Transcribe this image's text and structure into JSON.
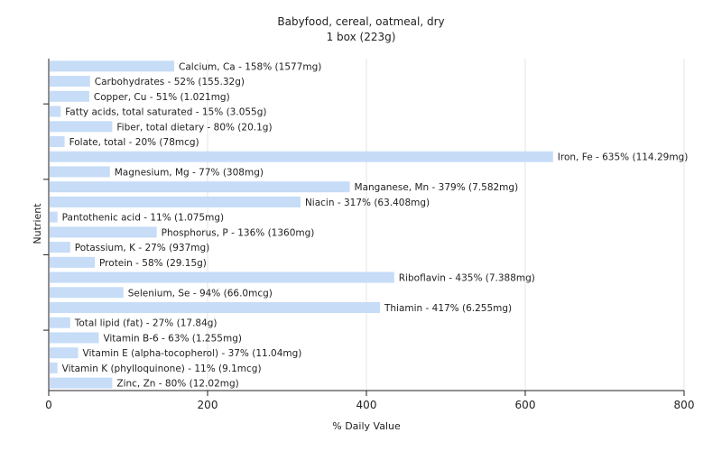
{
  "chart_data": {
    "type": "bar",
    "orientation": "horizontal",
    "title": "Babyfood, cereal, oatmeal, dry",
    "subtitle": "1 box (223g)",
    "xlabel": "% Daily Value",
    "ylabel": "Nutrient",
    "xlim": [
      0,
      800
    ],
    "xticks": [
      0,
      200,
      400,
      600,
      800
    ],
    "grid": true,
    "bar_color": "#c6dcf7",
    "categories": [
      "Calcium, Ca",
      "Carbohydrates",
      "Copper, Cu",
      "Fatty acids, total saturated",
      "Fiber, total dietary",
      "Folate, total",
      "Iron, Fe",
      "Magnesium, Mg",
      "Manganese, Mn",
      "Niacin",
      "Pantothenic acid",
      "Phosphorus, P",
      "Potassium, K",
      "Protein",
      "Riboflavin",
      "Selenium, Se",
      "Thiamin",
      "Total lipid (fat)",
      "Vitamin B-6",
      "Vitamin E (alpha-tocopherol)",
      "Vitamin K (phylloquinone)",
      "Zinc, Zn"
    ],
    "values": [
      158,
      52,
      51,
      15,
      80,
      20,
      635,
      77,
      379,
      317,
      11,
      136,
      27,
      58,
      435,
      94,
      417,
      27,
      63,
      37,
      11,
      80
    ],
    "labels": [
      "Calcium, Ca - 158% (1577mg)",
      "Carbohydrates - 52% (155.32g)",
      "Copper, Cu - 51% (1.021mg)",
      "Fatty acids, total saturated - 15% (3.055g)",
      "Fiber, total dietary - 80% (20.1g)",
      "Folate, total - 20% (78mcg)",
      "Iron, Fe - 635% (114.29mg)",
      "Magnesium, Mg - 77% (308mg)",
      "Manganese, Mn - 379% (7.582mg)",
      "Niacin - 317% (63.408mg)",
      "Pantothenic acid - 11% (1.075mg)",
      "Phosphorus, P - 136% (1360mg)",
      "Potassium, K - 27% (937mg)",
      "Protein - 58% (29.15g)",
      "Riboflavin - 435% (7.388mg)",
      "Selenium, Se - 94% (66.0mcg)",
      "Thiamin - 417% (6.255mg)",
      "Total lipid (fat) - 27% (17.84g)",
      "Vitamin B-6 - 63% (1.255mg)",
      "Vitamin E (alpha-tocopherol) - 37% (11.04mg)",
      "Vitamin K (phylloquinone) - 11% (9.1mcg)",
      "Zinc, Zn - 80% (12.02mg)"
    ]
  }
}
